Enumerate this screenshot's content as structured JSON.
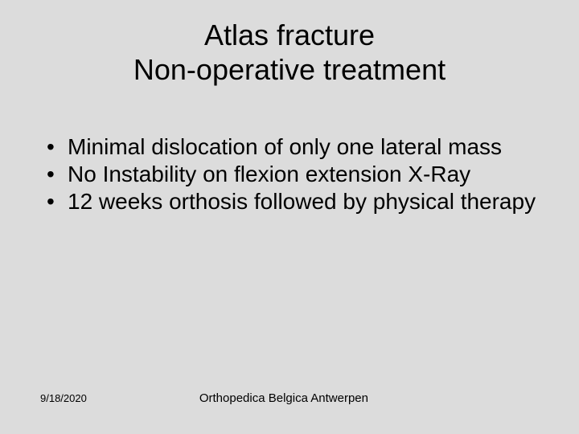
{
  "slide": {
    "background_color": "#dcdcdc",
    "text_color": "#000000",
    "title_fontsize": 36,
    "body_fontsize": 28,
    "footer_fontsize_small": 13,
    "footer_fontsize": 15,
    "title": {
      "line1": "Atlas fracture",
      "line2": "Non-operative treatment"
    },
    "bullets": [
      "Minimal dislocation of only one lateral mass",
      "No Instability on flexion extension X-Ray",
      "12 weeks orthosis followed by physical therapy"
    ],
    "footer": {
      "date": "9/18/2020",
      "text": "Orthopedica Belgica Antwerpen"
    }
  }
}
